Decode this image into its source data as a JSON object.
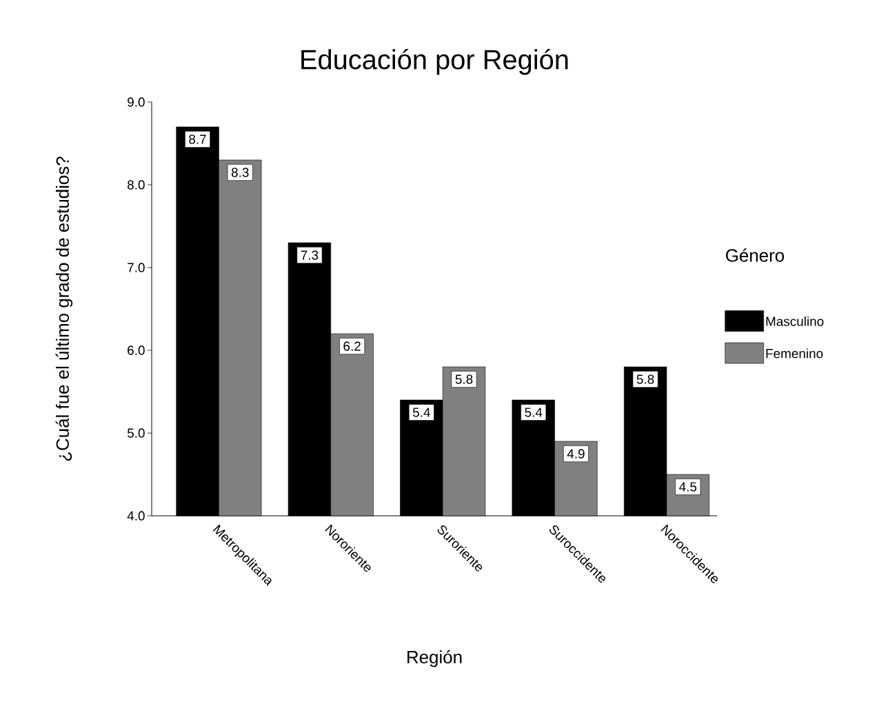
{
  "chart_data": {
    "type": "bar",
    "title": "Educación por Región",
    "xlabel": "Región",
    "ylabel": "¿Cuál fue el último grado de estudios?",
    "legend_title": "Género",
    "categories": [
      "Metropolitana",
      "Nororiente",
      "Suroriente",
      "Suroccidente",
      "Noroccidente"
    ],
    "series": [
      {
        "name": "Masculino",
        "color": "#000000",
        "values": [
          8.7,
          7.3,
          5.4,
          5.4,
          5.8
        ]
      },
      {
        "name": "Femenino",
        "color": "#808080",
        "values": [
          8.3,
          6.2,
          5.8,
          4.9,
          4.5
        ]
      }
    ],
    "ylim": [
      4,
      9
    ],
    "yticks": [
      {
        "value": 4,
        "label": "4.0"
      },
      {
        "value": 5,
        "label": "5.0"
      },
      {
        "value": 6,
        "label": "6.0"
      },
      {
        "value": 7,
        "label": "7.0"
      },
      {
        "value": 8,
        "label": "8.0"
      },
      {
        "value": 9,
        "label": "9.0"
      }
    ],
    "data_labels": true,
    "legend": "right",
    "grid": false
  }
}
